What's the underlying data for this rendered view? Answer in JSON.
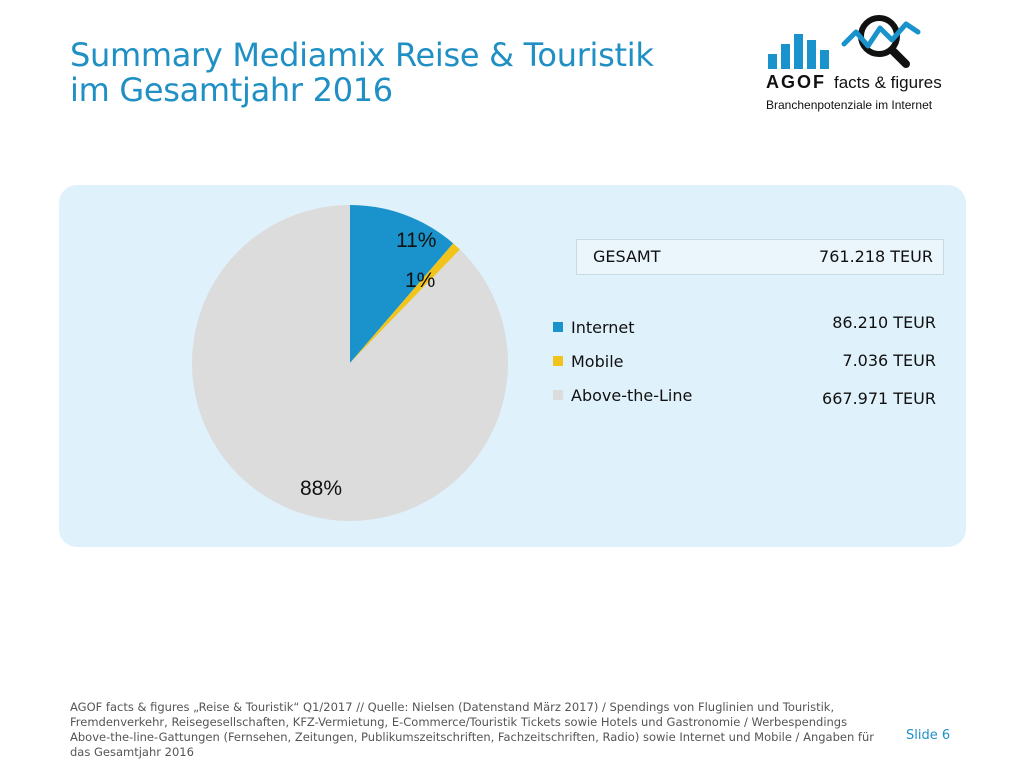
{
  "title": {
    "line1": "Summary Mediamix Reise & Touristik",
    "line2": "im Gesamtjahr 2016"
  },
  "logo": {
    "brand": "AGOF",
    "tagline": "facts & figures",
    "subtitle": "Branchenpotenziale im Internet",
    "icon": "bar-chart-magnifier-icon"
  },
  "total": {
    "label": "GESAMT",
    "value": "761.218 TEUR"
  },
  "chart_data": {
    "type": "pie",
    "title": "",
    "legend_placement": "right",
    "slices": [
      {
        "label": "Internet",
        "value": 86.21,
        "display_value": "86.210 TEUR",
        "percent_label": "11%",
        "color": "#1a93cc"
      },
      {
        "label": "Mobile",
        "value": 7.036,
        "display_value": "7.036 TEUR",
        "percent_label": "1%",
        "color": "#f2c31b"
      },
      {
        "label": "Above-the-Line",
        "value": 667.971,
        "display_value": "667.971 TEUR",
        "percent_label": "88%",
        "color": "#dcdcdc"
      }
    ]
  },
  "footer": {
    "source": "AGOF facts & figures „Reise & Touristik“ Q1/2017 // Quelle: Nielsen (Datenstand März 2017) / Spendings von Fluglinien und Touristik, Fremdenverkehr, Reisegesellschaften, KFZ-Vermietung, E-Commerce/Touristik Tickets sowie Hotels und Gastronomie / Werbespendings Above-the-line-Gattungen (Fernsehen, Zeitungen, Publikumszeitschriften, Fachzeitschriften, Radio) sowie Internet und Mobile / Angaben für das Gesamtjahr 2016",
    "slide": "Slide 6"
  }
}
